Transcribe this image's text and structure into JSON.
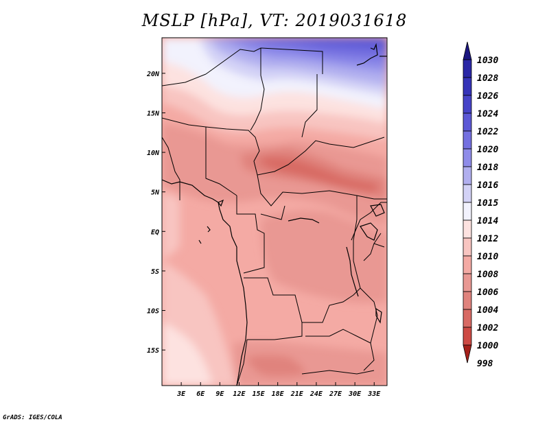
{
  "title": "MSLP [hPa], VT: 2019031618",
  "credit": "GrADS: IGES/COLA",
  "map": {
    "lon_range": [
      0,
      35
    ],
    "lat_range": [
      -19.5,
      24.5
    ],
    "x_ticks": [
      {
        "lon": 3,
        "label": "3E"
      },
      {
        "lon": 6,
        "label": "6E"
      },
      {
        "lon": 9,
        "label": "9E"
      },
      {
        "lon": 12,
        "label": "12E"
      },
      {
        "lon": 15,
        "label": "15E"
      },
      {
        "lon": 18,
        "label": "18E"
      },
      {
        "lon": 21,
        "label": "21E"
      },
      {
        "lon": 24,
        "label": "24E"
      },
      {
        "lon": 27,
        "label": "27E"
      },
      {
        "lon": 30,
        "label": "30E"
      },
      {
        "lon": 33,
        "label": "33E"
      }
    ],
    "y_ticks": [
      {
        "lat": 20,
        "label": "20N"
      },
      {
        "lat": 15,
        "label": "15N"
      },
      {
        "lat": 10,
        "label": "10N"
      },
      {
        "lat": 5,
        "label": "5N"
      },
      {
        "lat": 0,
        "label": "EQ"
      },
      {
        "lat": -5,
        "label": "5S"
      },
      {
        "lat": -10,
        "label": "10S"
      },
      {
        "lat": -15,
        "label": "15S"
      }
    ]
  },
  "colorbar": {
    "levels": [
      {
        "label": "1030",
        "color": "#1c1a8a"
      },
      {
        "label": "1028",
        "color": "#2a27a6"
      },
      {
        "label": "1026",
        "color": "#3533b8"
      },
      {
        "label": "1024",
        "color": "#4643c8"
      },
      {
        "label": "1022",
        "color": "#5c58d6"
      },
      {
        "label": "1020",
        "color": "#7470e0"
      },
      {
        "label": "1018",
        "color": "#8f8ce9"
      },
      {
        "label": "1016",
        "color": "#b1afef"
      },
      {
        "label": "1015",
        "color": "#d3d2f6"
      },
      {
        "label": "1014",
        "color": "#f2f2fd"
      },
      {
        "label": "1012",
        "color": "#fde2e0"
      },
      {
        "label": "1010",
        "color": "#f8c5c1"
      },
      {
        "label": "1008",
        "color": "#f4aaa4"
      },
      {
        "label": "1006",
        "color": "#e99893"
      },
      {
        "label": "1004",
        "color": "#e0837d"
      },
      {
        "label": "1002",
        "color": "#d86a64"
      },
      {
        "label": "1000",
        "color": "#cd4a44"
      },
      {
        "label": "998",
        "color": "#b92c26"
      }
    ],
    "top_arrow_color": "#1b1580",
    "bottom_arrow_color": "#a5201a"
  }
}
